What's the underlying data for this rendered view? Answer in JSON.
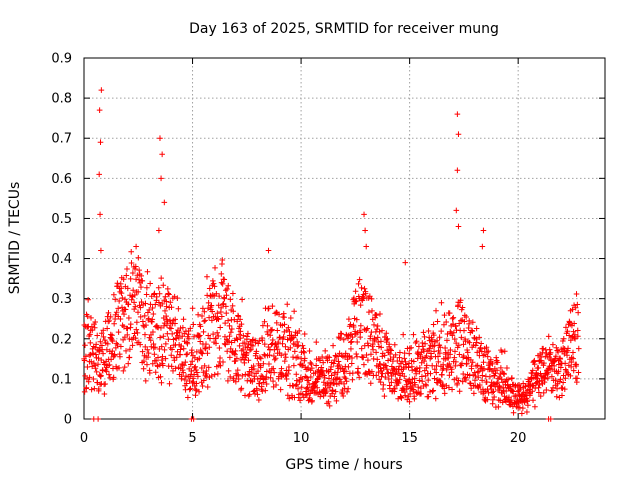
{
  "chart_data": {
    "type": "scatter",
    "title": "Day 163 of 2025, SRMTID for receiver mung",
    "xlabel": "GPS time / hours",
    "ylabel": "SRMTID / TECUs",
    "xlim": [
      0,
      24
    ],
    "ylim": [
      0,
      0.9
    ],
    "xticks": [
      0,
      5,
      10,
      15,
      20
    ],
    "xtick_labels": [
      "0",
      "5",
      "10",
      "15",
      "20"
    ],
    "yticks": [
      0,
      0.1,
      0.2,
      0.3,
      0.4,
      0.5,
      0.6,
      0.7,
      0.8,
      0.9
    ],
    "ytick_labels": [
      "0",
      "0.1",
      "0.2",
      "0.3",
      "0.4",
      "0.5",
      "0.6",
      "0.7",
      "0.8",
      "0.9"
    ],
    "grid": true,
    "marker": "plus",
    "series": [
      {
        "name": "SRMTID",
        "color": "#ff0000",
        "profile_x": [
          0.0,
          0.4,
          0.8,
          1.2,
          1.6,
          2.0,
          2.4,
          2.8,
          3.2,
          3.6,
          4.0,
          4.4,
          4.8,
          5.2,
          5.6,
          6.0,
          6.4,
          6.8,
          7.2,
          7.6,
          8.0,
          8.4,
          8.8,
          9.2,
          9.6,
          10.0,
          10.4,
          10.8,
          11.2,
          11.6,
          12.0,
          12.4,
          12.8,
          13.2,
          13.6,
          14.0,
          14.4,
          14.8,
          15.2,
          15.6,
          16.0,
          16.4,
          16.8,
          17.2,
          17.6,
          18.0,
          18.4,
          18.8,
          19.2,
          19.6,
          20.0,
          20.4,
          20.8,
          21.2,
          21.6,
          22.0,
          22.4,
          22.8
        ],
        "profile_y": [
          0.16,
          0.16,
          0.16,
          0.17,
          0.22,
          0.25,
          0.27,
          0.24,
          0.22,
          0.22,
          0.21,
          0.19,
          0.15,
          0.14,
          0.2,
          0.24,
          0.26,
          0.2,
          0.16,
          0.14,
          0.12,
          0.18,
          0.17,
          0.16,
          0.14,
          0.12,
          0.09,
          0.09,
          0.1,
          0.12,
          0.14,
          0.2,
          0.23,
          0.2,
          0.16,
          0.12,
          0.1,
          0.1,
          0.12,
          0.13,
          0.14,
          0.15,
          0.17,
          0.19,
          0.18,
          0.15,
          0.12,
          0.1,
          0.08,
          0.06,
          0.05,
          0.06,
          0.1,
          0.12,
          0.13,
          0.14,
          0.17,
          0.2
        ],
        "spikes": [
          {
            "x": 0.8,
            "y": 0.82
          },
          {
            "x": 0.72,
            "y": 0.77
          },
          {
            "x": 0.76,
            "y": 0.69
          },
          {
            "x": 0.7,
            "y": 0.61
          },
          {
            "x": 0.74,
            "y": 0.51
          },
          {
            "x": 0.78,
            "y": 0.42
          },
          {
            "x": 3.5,
            "y": 0.7
          },
          {
            "x": 3.6,
            "y": 0.66
          },
          {
            "x": 3.55,
            "y": 0.6
          },
          {
            "x": 3.7,
            "y": 0.54
          },
          {
            "x": 3.45,
            "y": 0.47
          },
          {
            "x": 2.4,
            "y": 0.43
          },
          {
            "x": 8.5,
            "y": 0.42
          },
          {
            "x": 12.9,
            "y": 0.51
          },
          {
            "x": 12.95,
            "y": 0.47
          },
          {
            "x": 13.0,
            "y": 0.43
          },
          {
            "x": 14.8,
            "y": 0.39
          },
          {
            "x": 17.2,
            "y": 0.76
          },
          {
            "x": 17.25,
            "y": 0.71
          },
          {
            "x": 17.2,
            "y": 0.62
          },
          {
            "x": 17.15,
            "y": 0.52
          },
          {
            "x": 17.25,
            "y": 0.48
          },
          {
            "x": 18.4,
            "y": 0.47
          },
          {
            "x": 18.35,
            "y": 0.43
          }
        ],
        "zero_points": [
          0.45,
          0.65,
          4.95,
          5.05,
          21.4,
          21.5
        ]
      }
    ]
  }
}
